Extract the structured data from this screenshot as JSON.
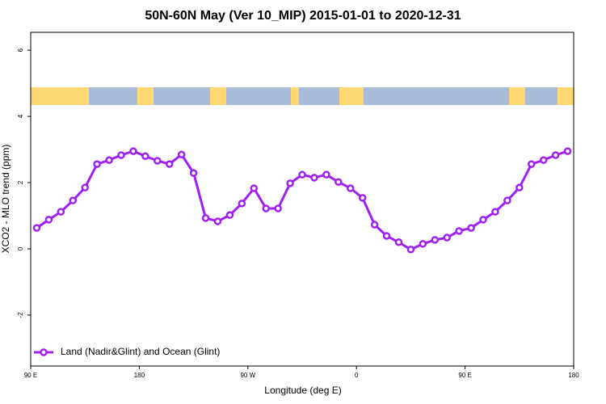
{
  "chart_data": {
    "type": "line",
    "title": "50N-60N May (Ver 10_MIP)   2015-01-01 to 2020-12-31",
    "x_label": "Longitude (deg E)",
    "y_label": "XCO2 - MLO trend (ppm)",
    "x": [
      95,
      105,
      115,
      125,
      135,
      145,
      155,
      165,
      175,
      185,
      195,
      205,
      215,
      225,
      235,
      245,
      255,
      265,
      275,
      285,
      295,
      305,
      315,
      325,
      335,
      345,
      355,
      365,
      375,
      385,
      395,
      405,
      415,
      425,
      435,
      445,
      455,
      465,
      475,
      485,
      495,
      505,
      515,
      525,
      535
    ],
    "series": [
      {
        "name": "Land (Nadir&Glint) and Ocean (Glint)",
        "color": "#a020f0",
        "values": [
          0.63,
          0.88,
          1.12,
          1.46,
          1.85,
          2.56,
          2.68,
          2.83,
          2.95,
          2.8,
          2.66,
          2.56,
          2.85,
          2.29,
          0.93,
          0.83,
          1.02,
          1.37,
          1.83,
          1.22,
          1.22,
          1.98,
          2.24,
          2.15,
          2.24,
          2.02,
          1.83,
          1.54,
          0.73,
          0.39,
          0.2,
          -0.02,
          0.15,
          0.27,
          0.34,
          0.54,
          0.63,
          0.88,
          1.12,
          1.46,
          1.85,
          2.56,
          2.68,
          2.83,
          2.95
        ]
      }
    ],
    "xlim": [
      90,
      540
    ],
    "xticks": [
      {
        "value": 90,
        "label": "90 E"
      },
      180,
      {
        "value": 270,
        "label": "90 W"
      },
      {
        "value": 360,
        "label": "0"
      },
      {
        "value": 450,
        "label": "90 E"
      },
      {
        "value": 540,
        "label": "180"
      }
    ],
    "ylim": [
      -3.54,
      6.54
    ],
    "yticks": [
      -2,
      0,
      2,
      4,
      6
    ],
    "legend": "bottom-left"
  }
}
